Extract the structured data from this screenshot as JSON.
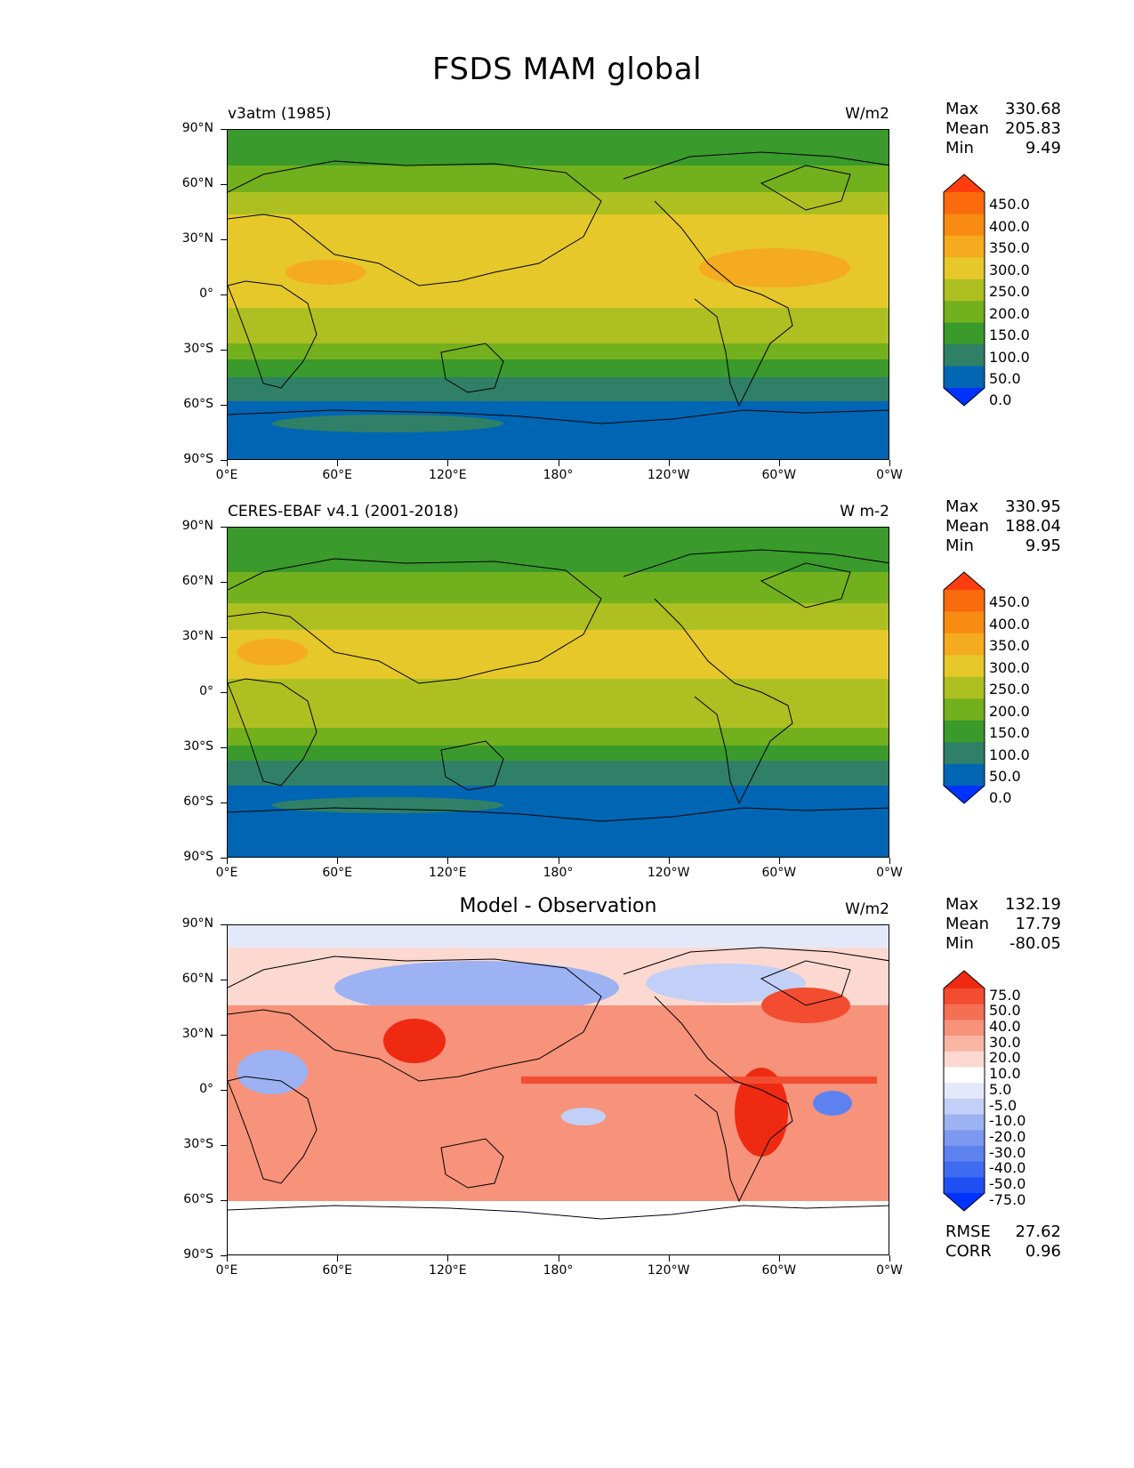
{
  "title": "FSDS MAM global",
  "axes": {
    "y_ticks": [
      "90°N",
      "60°N",
      "30°N",
      "0°",
      "30°S",
      "60°S",
      "90°S"
    ],
    "x_ticks": [
      "0°E",
      "60°E",
      "120°E",
      "180°",
      "120°W",
      "60°W",
      "0°W"
    ]
  },
  "panels": [
    {
      "id": "model",
      "left_label": "v3atm (1985)",
      "center_label": "",
      "units": "W/m2",
      "stats": {
        "max_label": "Max",
        "max": "330.68",
        "mean_label": "Mean",
        "mean": "205.83",
        "min_label": "Min",
        "min": "9.49"
      },
      "colorbar": {
        "labels": [
          "450.0",
          "400.0",
          "350.0",
          "300.0",
          "250.0",
          "200.0",
          "150.0",
          "100.0",
          "50.0",
          "0.0"
        ],
        "colors": [
          "#0033ff",
          "#0066b3",
          "#2f8066",
          "#3a9a2b",
          "#73b01d",
          "#aec021",
          "#e6c82a",
          "#f5ab1f",
          "#f88c13",
          "#f96b0d",
          "#ff3d0f"
        ]
      }
    },
    {
      "id": "obs",
      "left_label": "CERES-EBAF v4.1 (2001-2018)",
      "center_label": "",
      "units": "W m-2",
      "stats": {
        "max_label": "Max",
        "max": "330.95",
        "mean_label": "Mean",
        "mean": "188.04",
        "min_label": "Min",
        "min": "9.95"
      },
      "colorbar": {
        "labels": [
          "450.0",
          "400.0",
          "350.0",
          "300.0",
          "250.0",
          "200.0",
          "150.0",
          "100.0",
          "50.0",
          "0.0"
        ],
        "colors": [
          "#0033ff",
          "#0066b3",
          "#2f8066",
          "#3a9a2b",
          "#73b01d",
          "#aec021",
          "#e6c82a",
          "#f5ab1f",
          "#f88c13",
          "#f96b0d",
          "#ff3d0f"
        ]
      }
    },
    {
      "id": "diff",
      "left_label": "",
      "center_label": "Model - Observation",
      "units": "W/m2",
      "stats": {
        "max_label": "Max",
        "max": "132.19",
        "mean_label": "Mean",
        "mean": "17.79",
        "min_label": "Min",
        "min": "-80.05"
      },
      "colorbar": {
        "labels": [
          "75.0",
          "50.0",
          "40.0",
          "30.0",
          "20.0",
          "10.0",
          "5.0",
          "-5.0",
          "-10.0",
          "-20.0",
          "-30.0",
          "-40.0",
          "-50.0",
          "-75.0"
        ],
        "colors": [
          "#0033ff",
          "#1f4ff2",
          "#3f6bf0",
          "#5d82f0",
          "#7c99ef",
          "#9db2f2",
          "#c2cff7",
          "#e3e9fb",
          "#ffffff",
          "#fbd9d1",
          "#f9b5a4",
          "#f7927b",
          "#f56f54",
          "#f24d30",
          "#ef2a12"
        ]
      },
      "metrics": {
        "rmse_label": "RMSE",
        "rmse": "27.62",
        "corr_label": "CORR",
        "corr": "0.96"
      }
    }
  ],
  "colors": {
    "land_outline": "#000000",
    "model_bands": [
      "#0066b3",
      "#2f8066",
      "#3a9a2b",
      "#73b01d",
      "#aec021",
      "#e6c82a",
      "#f5ab1f"
    ],
    "diff_pos": "#f24d30",
    "diff_neg": "#7c99ef"
  }
}
